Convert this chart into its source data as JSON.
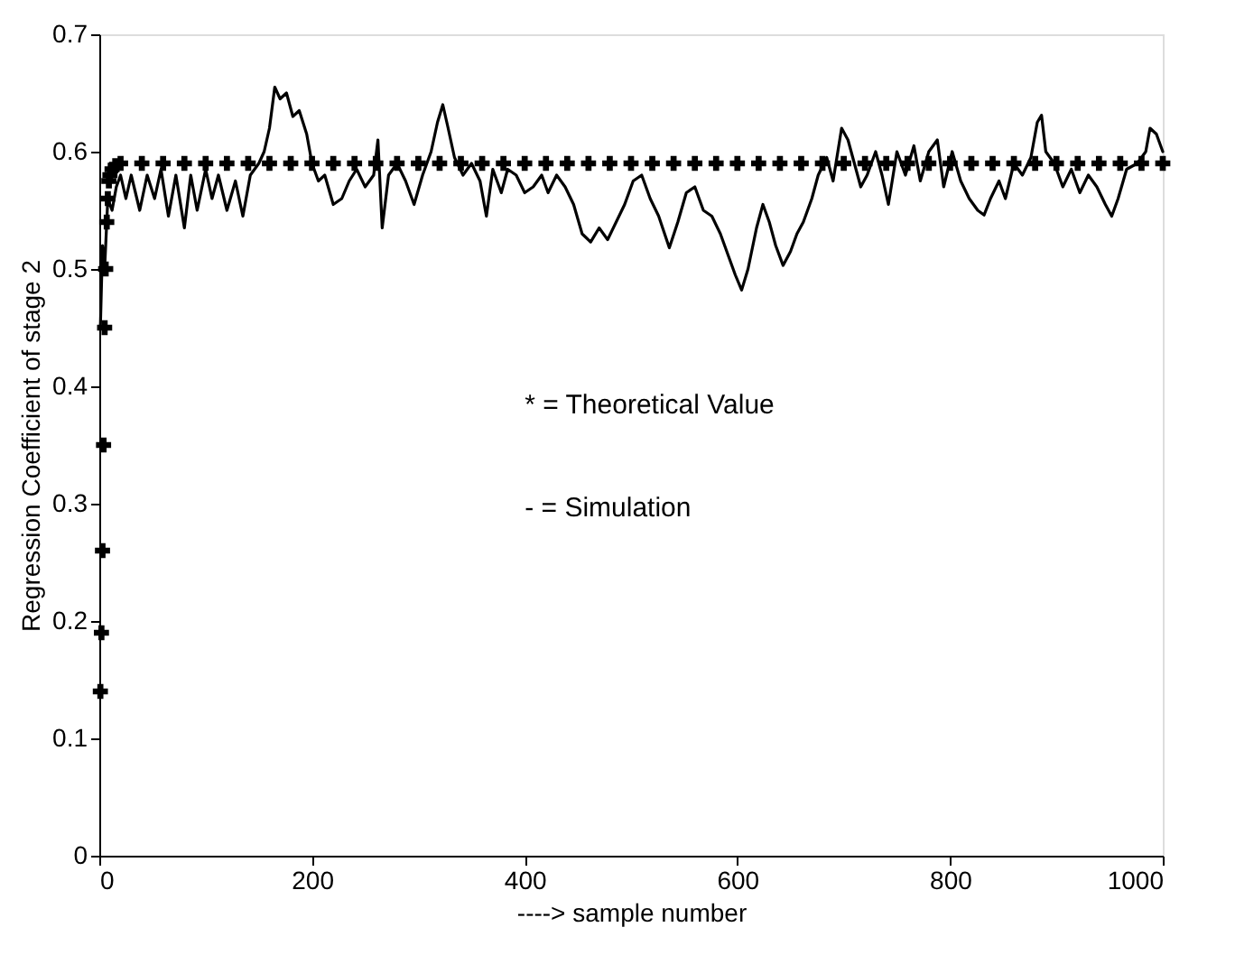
{
  "chart_data": {
    "type": "line",
    "xlabel": "----> sample number",
    "ylabel": "Regression Coefficient of stage 2",
    "xlim": [
      0,
      1000
    ],
    "xticks": [
      0,
      200,
      400,
      600,
      800,
      1000
    ],
    "ylim": [
      0,
      0.7
    ],
    "yticks": [
      0,
      0.1,
      0.2,
      0.3,
      0.4,
      0.5,
      0.6,
      0.7
    ],
    "annotations": [
      "* = Theoretical Value",
      "- = Simulation"
    ],
    "series": [
      {
        "type": "scatter",
        "marker": "cross",
        "color": "#000000",
        "x": [
          1,
          2,
          3,
          4,
          5,
          6,
          7,
          8,
          9,
          10,
          12,
          15,
          20,
          40,
          60,
          80,
          100,
          120,
          140,
          160,
          180,
          200,
          220,
          240,
          260,
          280,
          300,
          320,
          340,
          360,
          380,
          400,
          420,
          440,
          460,
          480,
          500,
          520,
          540,
          560,
          580,
          600,
          620,
          640,
          660,
          680,
          700,
          720,
          740,
          760,
          780,
          800,
          820,
          840,
          860,
          880,
          900,
          920,
          940,
          960,
          980,
          1000
        ],
        "values": [
          0.14,
          0.19,
          0.26,
          0.35,
          0.45,
          0.5,
          0.54,
          0.56,
          0.575,
          0.58,
          0.585,
          0.588,
          0.59,
          0.59,
          0.59,
          0.59,
          0.59,
          0.59,
          0.59,
          0.59,
          0.59,
          0.59,
          0.59,
          0.59,
          0.59,
          0.59,
          0.59,
          0.59,
          0.59,
          0.59,
          0.59,
          0.59,
          0.59,
          0.59,
          0.59,
          0.59,
          0.59,
          0.59,
          0.59,
          0.59,
          0.59,
          0.59,
          0.59,
          0.59,
          0.59,
          0.59,
          0.59,
          0.59,
          0.59,
          0.59,
          0.59,
          0.59,
          0.59,
          0.59,
          0.59,
          0.59,
          0.59,
          0.59,
          0.59,
          0.59,
          0.59,
          0.59
        ]
      },
      {
        "line_style": "solid",
        "color": "#000000",
        "x": [
          1,
          3,
          5,
          8,
          12,
          16,
          20,
          25,
          30,
          38,
          45,
          52,
          58,
          65,
          72,
          80,
          86,
          92,
          100,
          106,
          112,
          120,
          128,
          135,
          142,
          150,
          155,
          160,
          165,
          170,
          176,
          182,
          188,
          195,
          200,
          206,
          212,
          220,
          228,
          235,
          242,
          250,
          258,
          262,
          266,
          272,
          280,
          288,
          296,
          304,
          312,
          318,
          323,
          328,
          334,
          342,
          350,
          358,
          364,
          370,
          378,
          384,
          392,
          400,
          408,
          416,
          422,
          430,
          438,
          446,
          454,
          462,
          470,
          478,
          486,
          494,
          502,
          510,
          518,
          526,
          536,
          544,
          552,
          560,
          568,
          576,
          584,
          592,
          598,
          604,
          610,
          618,
          624,
          630,
          636,
          643,
          650,
          656,
          662,
          670,
          676,
          684,
          690,
          698,
          704,
          710,
          716,
          722,
          730,
          736,
          742,
          750,
          758,
          766,
          772,
          780,
          788,
          794,
          802,
          810,
          818,
          826,
          832,
          838,
          846,
          852,
          860,
          868,
          876,
          882,
          886,
          890,
          898,
          906,
          914,
          922,
          930,
          938,
          946,
          952,
          958,
          966,
          976,
          984,
          988,
          994,
          1000
        ],
        "values": [
          0.45,
          0.52,
          0.5,
          0.56,
          0.55,
          0.57,
          0.58,
          0.56,
          0.58,
          0.55,
          0.58,
          0.56,
          0.585,
          0.545,
          0.58,
          0.535,
          0.58,
          0.55,
          0.585,
          0.56,
          0.58,
          0.55,
          0.575,
          0.545,
          0.58,
          0.59,
          0.6,
          0.62,
          0.655,
          0.645,
          0.65,
          0.63,
          0.635,
          0.615,
          0.59,
          0.575,
          0.58,
          0.555,
          0.56,
          0.575,
          0.585,
          0.57,
          0.58,
          0.61,
          0.535,
          0.58,
          0.59,
          0.575,
          0.555,
          0.58,
          0.6,
          0.625,
          0.64,
          0.62,
          0.595,
          0.58,
          0.59,
          0.575,
          0.545,
          0.585,
          0.565,
          0.585,
          0.58,
          0.565,
          0.57,
          0.58,
          0.565,
          0.58,
          0.57,
          0.555,
          0.53,
          0.523,
          0.535,
          0.525,
          0.54,
          0.555,
          0.575,
          0.58,
          0.56,
          0.545,
          0.518,
          0.54,
          0.565,
          0.57,
          0.55,
          0.545,
          0.53,
          0.51,
          0.495,
          0.482,
          0.5,
          0.535,
          0.555,
          0.54,
          0.52,
          0.503,
          0.515,
          0.53,
          0.54,
          0.56,
          0.58,
          0.595,
          0.575,
          0.62,
          0.61,
          0.59,
          0.57,
          0.58,
          0.6,
          0.58,
          0.555,
          0.6,
          0.58,
          0.605,
          0.575,
          0.6,
          0.61,
          0.57,
          0.6,
          0.575,
          0.56,
          0.55,
          0.546,
          0.56,
          0.575,
          0.56,
          0.59,
          0.58,
          0.595,
          0.625,
          0.631,
          0.6,
          0.59,
          0.57,
          0.585,
          0.565,
          0.58,
          0.57,
          0.555,
          0.545,
          0.56,
          0.585,
          0.59,
          0.6,
          0.62,
          0.615,
          0.6
        ]
      }
    ]
  }
}
